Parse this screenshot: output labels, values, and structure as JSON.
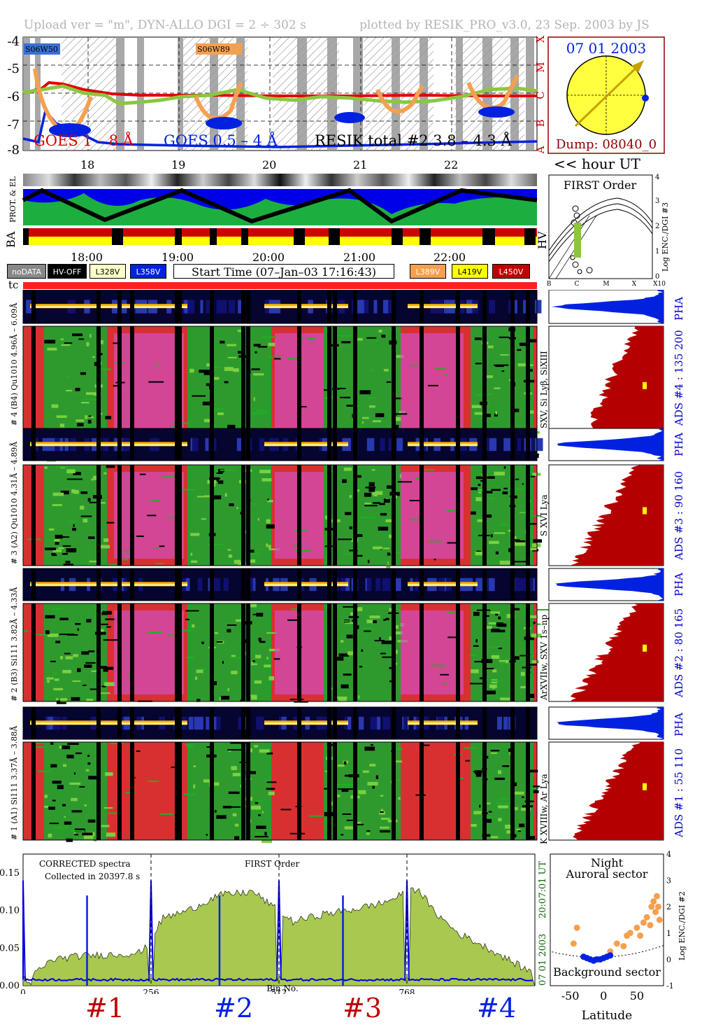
{
  "header": {
    "left": "Upload ver = \"m\", DYN-ALLO DGI =   2 ÷ 302 s",
    "right": "plotted by RESIK_PRO_v3.0, 23 Sep. 2003 by JS"
  },
  "goes": {
    "region_labels": [
      "S06W50",
      "S06W89"
    ],
    "yticks": [
      "-4",
      "-5",
      "-6",
      "-7",
      "-8"
    ],
    "class_letters": [
      "X",
      "M",
      "C",
      "B",
      "A"
    ],
    "legend_goes1": "GOES 1 – 8 Å",
    "legend_goes05": "GOES 0.5 – 4 Å",
    "legend_resik": "RESIK total #2  3.8 – 4.3 Å",
    "hour_ticks": [
      "18",
      "19",
      "20",
      "21",
      "22"
    ],
    "colors": {
      "goes1": "#e00000",
      "goes05": "#0000e0",
      "resik_quiet": "#8cc63f",
      "resik_flare": "#f5a050"
    }
  },
  "sun": {
    "date": "07 01 2003",
    "dump": "Dump: 08040_0",
    "hour_ut": "<< hour UT"
  },
  "orbit": {
    "label_prot": "PROT. & EL",
    "label_ba": "BA",
    "label_hv": "HV",
    "time_ticks": [
      "18:00",
      "19:00",
      "20:00",
      "21:00",
      "22:00"
    ]
  },
  "first_order": {
    "title": "FIRST Order",
    "ylabel": "Log ENC./DGI #3",
    "yticks": [
      "0",
      "1",
      "2",
      "3",
      "4"
    ],
    "xticks": [
      "B",
      "C",
      "M",
      "X",
      "X10"
    ]
  },
  "status_legend": {
    "nodata": "noDATA",
    "hvoff": "HV-OFF",
    "l328": "L328V",
    "l358": "L358V",
    "start_time": "Start Time (07–Jan–03 17:16:43)",
    "l389": "L389V",
    "l419": "L419V",
    "l450": "L450V",
    "tc": "tc"
  },
  "channels": [
    {
      "pha_label": "# 4 (B4) Qu1010  4.96Å – 6.09Å",
      "ion_label": "SXV, Si Lyβ, SiXIII",
      "ads": "ADS #4 :  135 200"
    },
    {
      "pha_label": "# 3 (A2) Qu1010  4.31Å – 4.89Å",
      "ion_label": "S XVI Lya",
      "ads": "ADS #3 :   90 160"
    },
    {
      "pha_label": "# 2 (B3) Si111  3.82Å – 4.33Å",
      "ion_label": "ArXVIIw, SXV 1s–np",
      "ads": "ADS #2 :   80 165"
    },
    {
      "pha_label": "# 1 (A1) Si111  3.37Å – 3.88Å",
      "ion_label": "K XVIIIw, Ar Lya",
      "ads": "ADS #1 :   55 110"
    }
  ],
  "pha": "PHA",
  "chart_data": [
    {
      "type": "line",
      "title": "",
      "annotation_1": "CORRECTED spectra",
      "annotation_2": "Collected in 20397.8 s",
      "annotation_3": "FIRST Order",
      "xlabel": "Bin No.",
      "x_ticks": [
        "0",
        "256",
        "512",
        "768"
      ],
      "y_ticks": [
        "0.00",
        "0.05",
        "0.10",
        "0.15"
      ],
      "xlim": [
        0,
        1024
      ],
      "ylim": [
        0,
        0.175
      ],
      "right_label_1": "20:07:01 UT",
      "right_label_2": "07 01 2003",
      "segment_labels": [
        "#1",
        "#2",
        "#3",
        "#4"
      ],
      "series": [
        {
          "name": "corrected",
          "color": "#a8c850",
          "levels": [
            [
              20,
              0.015
            ],
            [
              60,
              0.035
            ],
            [
              120,
              0.04
            ],
            [
              200,
              0.042
            ],
            [
              240,
              0.045
            ],
            [
              280,
              0.09
            ],
            [
              330,
              0.1
            ],
            [
              390,
              0.12
            ],
            [
              460,
              0.125
            ],
            [
              540,
              0.085
            ],
            [
              600,
              0.095
            ],
            [
              650,
              0.1
            ],
            [
              720,
              0.11
            ],
            [
              790,
              0.13
            ],
            [
              820,
              0.1
            ],
            [
              870,
              0.07
            ],
            [
              930,
              0.05
            ],
            [
              1010,
              0.02
            ]
          ]
        },
        {
          "name": "background",
          "color": "#0000e0",
          "level": 0.008
        }
      ]
    },
    {
      "type": "scatter",
      "title_1": "Night",
      "title_2": "Auroral sector",
      "bottom_label": "Background sector",
      "xlabel": "Latitude",
      "ylabel": "Log ENC./DGI #2",
      "x_ticks": [
        "-50",
        "0",
        "50"
      ],
      "y_ticks": [
        "-1",
        "0",
        "1",
        "2",
        "3",
        "4"
      ],
      "xlim": [
        -80,
        90
      ],
      "ylim": [
        -1,
        4
      ],
      "orange_points": [
        [
          -45,
          0.6
        ],
        [
          -40,
          1.2
        ],
        [
          10,
          0.3
        ],
        [
          20,
          0.6
        ],
        [
          30,
          0.5
        ],
        [
          35,
          0.9
        ],
        [
          40,
          1.0
        ],
        [
          50,
          1.2
        ],
        [
          55,
          0.9
        ],
        [
          60,
          1.4
        ],
        [
          65,
          1.6
        ],
        [
          70,
          1.3
        ],
        [
          72,
          2.0
        ],
        [
          75,
          2.2
        ],
        [
          78,
          1.8
        ],
        [
          80,
          2.4
        ],
        [
          82,
          2.0
        ],
        [
          84,
          1.5
        ]
      ],
      "blue_points": [
        [
          -30,
          0.1
        ],
        [
          -25,
          0.05
        ],
        [
          -20,
          0.0
        ],
        [
          -15,
          -0.05
        ],
        [
          -10,
          0.0
        ],
        [
          -5,
          0.0
        ],
        [
          0,
          0.05
        ],
        [
          5,
          0.1
        ],
        [
          10,
          0.15
        ]
      ]
    }
  ]
}
